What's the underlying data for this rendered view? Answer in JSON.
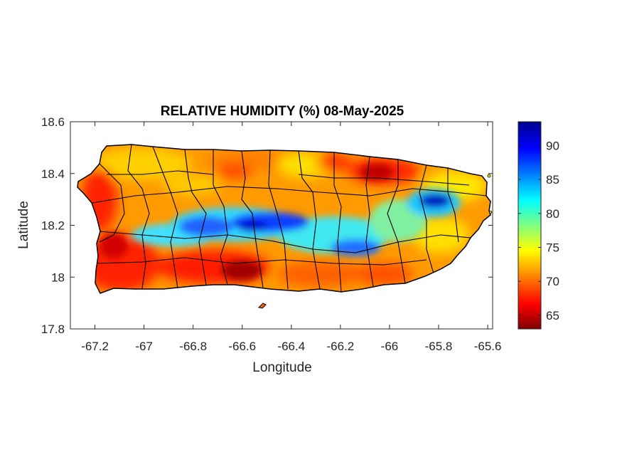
{
  "title": "RELATIVE HUMIDITY (%) 08-May-2025",
  "xlabel": "Longitude",
  "ylabel": "Latitude",
  "xlim": [
    -67.3,
    -65.58
  ],
  "ylim": [
    17.8,
    18.6
  ],
  "x_ticks": [
    "-67.2",
    "-67",
    "-66.8",
    "-66.6",
    "-66.4",
    "-66.2",
    "-66",
    "-65.8",
    "-65.6"
  ],
  "x_tick_values": [
    -67.2,
    -67,
    -66.8,
    -66.6,
    -66.4,
    -66.2,
    -66,
    -65.8,
    -65.6
  ],
  "y_ticks": [
    "18.6",
    "18.4",
    "18.2",
    "18"
  ],
  "y_tick_values": [
    18.6,
    18.4,
    18.2,
    18.0
  ],
  "y_bottom_tick": "17.8",
  "colorbar": {
    "range": [
      63,
      93.5
    ],
    "ticks": [
      "90",
      "85",
      "80",
      "75",
      "70",
      "65"
    ],
    "tick_values": [
      90,
      85,
      80,
      75,
      70,
      65
    ],
    "colormap": "jet"
  },
  "chart_data": {
    "type": "heatmap",
    "region": "Puerto Rico",
    "variable": "Relative humidity (%)",
    "date": "08-May-2025",
    "value_range": [
      63,
      93.5
    ],
    "humid_band": "central cordillera from -67.1 to -65.9 longitude (~83-88%), maximum near -65.8, 18.3 (~92%)",
    "dry_areas": "southern coast and southwest (~63-67%), north-central coast near -66.1, 18.4 (~65%)"
  },
  "colors": {
    "outline": "#000000",
    "jet_stops": [
      "#00008f",
      "#0000ff",
      "#00ffff",
      "#ffff00",
      "#ff0000",
      "#800000"
    ]
  }
}
